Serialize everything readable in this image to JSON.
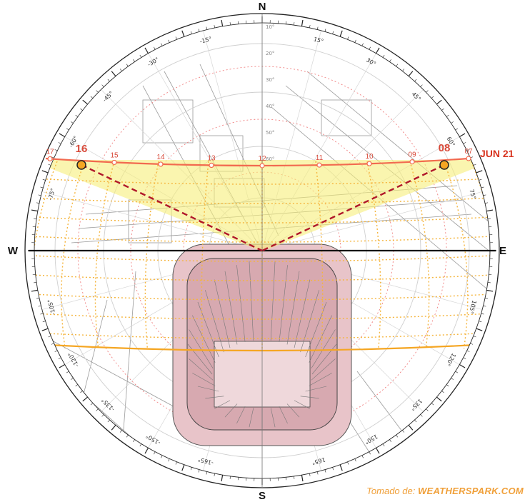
{
  "cardinals": {
    "n": "N",
    "s": "S",
    "e": "E",
    "w": "W"
  },
  "azimuth_labels": [
    {
      "deg": -150,
      "text": "-150°"
    },
    {
      "deg": -135,
      "text": "-135°"
    },
    {
      "deg": -120,
      "text": "-120°"
    },
    {
      "deg": -105,
      "text": "-105°"
    },
    {
      "deg": -75,
      "text": "-75°"
    },
    {
      "deg": -60,
      "text": "-60°"
    },
    {
      "deg": -45,
      "text": "-45°"
    },
    {
      "deg": -30,
      "text": "-30°"
    },
    {
      "deg": -15,
      "text": "-15°"
    },
    {
      "deg": 15,
      "text": "15°"
    },
    {
      "deg": 30,
      "text": "30°"
    },
    {
      "deg": 45,
      "text": "45°"
    },
    {
      "deg": 60,
      "text": "60°"
    },
    {
      "deg": 75,
      "text": "75°"
    },
    {
      "deg": 105,
      "text": "105°"
    },
    {
      "deg": 120,
      "text": "120°"
    },
    {
      "deg": 135,
      "text": "135°"
    },
    {
      "deg": 150,
      "text": "150°"
    },
    {
      "deg": 165,
      "text": "165°"
    },
    {
      "deg": -165,
      "text": "-165°"
    }
  ],
  "altitude_labels": [
    "10°",
    "20°",
    "30°",
    "40°",
    "50°",
    "60°"
  ],
  "sun_path": {
    "date_label": "JUN 21",
    "hours": [
      "17",
      "16",
      "15",
      "14",
      "13",
      "12",
      "11",
      "10",
      "09",
      "08",
      "07"
    ],
    "highlight_hours": [
      "16",
      "08"
    ],
    "colors": {
      "path": "#f26a4f",
      "sector": "#f7ee7a",
      "band": "#f5b53d",
      "arrow": "#b0172a"
    }
  },
  "building": {
    "fill": "#e8c4c9",
    "stroke": "#555555"
  },
  "credit": {
    "prefix": "Tomado de: ",
    "source": "WEATHERSPARK.COM"
  }
}
